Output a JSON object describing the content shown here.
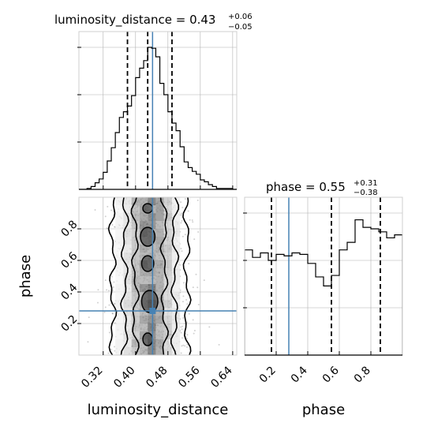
{
  "chart_data": [
    {
      "type": "histogram",
      "panel": "luminosity_distance-marginal",
      "title": {
        "param": "luminosity_distance",
        "value": "0.43",
        "upper": "+0.06",
        "lower": "−0.05"
      },
      "xlim": [
        0.26,
        0.65
      ],
      "truth": 0.442,
      "quantiles": [
        0.38,
        0.43,
        0.49
      ],
      "bins": [
        0.26,
        0.27,
        0.28,
        0.29,
        0.3,
        0.31,
        0.32,
        0.33,
        0.34,
        0.35,
        0.36,
        0.37,
        0.38,
        0.39,
        0.4,
        0.41,
        0.42,
        0.43,
        0.44,
        0.45,
        0.46,
        0.47,
        0.48,
        0.49,
        0.5,
        0.51,
        0.52,
        0.53,
        0.54,
        0.55,
        0.56,
        0.57,
        0.58,
        0.59,
        0.6,
        0.61,
        0.62,
        0.63,
        0.64,
        0.65
      ],
      "values": [
        0,
        0,
        1,
        3,
        7,
        11,
        18,
        30,
        44,
        60,
        76,
        82,
        88,
        99,
        118,
        128,
        136,
        150,
        149,
        140,
        112,
        100,
        82,
        70,
        62,
        45,
        29,
        23,
        19,
        16,
        10,
        8,
        5,
        3,
        1,
        1,
        1,
        1,
        0
      ]
    },
    {
      "type": "histogram",
      "panel": "phase-marginal",
      "title": {
        "param": "phase",
        "value": "0.55",
        "upper": "+0.31",
        "lower": "−0.38"
      },
      "xlim": [
        0,
        1
      ],
      "truth": 0.28,
      "quantiles": [
        0.17,
        0.55,
        0.86
      ],
      "bins": [
        0,
        0.05,
        0.1,
        0.15,
        0.2,
        0.25,
        0.3,
        0.35,
        0.4,
        0.45,
        0.5,
        0.55,
        0.6,
        0.65,
        0.7,
        0.75,
        0.8,
        0.85,
        0.9,
        0.95,
        1.0
      ],
      "values": [
        0.7,
        0.65,
        0.68,
        0.63,
        0.67,
        0.66,
        0.68,
        0.67,
        0.61,
        0.52,
        0.46,
        0.53,
        0.7,
        0.75,
        0.9,
        0.85,
        0.84,
        0.82,
        0.78,
        0.8
      ]
    },
    {
      "type": "scatter",
      "panel": "luminosity_distance-vs-phase",
      "xlabel": "luminosity_distance",
      "ylabel": "phase",
      "xlim": [
        0.26,
        0.65
      ],
      "ylim": [
        0,
        1
      ],
      "truth": {
        "x": 0.442,
        "y": 0.28
      }
    }
  ],
  "axes": {
    "x_ticks_ld": [
      "0.32",
      "0.40",
      "0.48",
      "0.56",
      "0.64"
    ],
    "x_ticks_phase": [
      "0.2",
      "0.4",
      "0.6",
      "0.8"
    ],
    "y_ticks_phase": [
      "0.2",
      "0.4",
      "0.6",
      "0.8"
    ],
    "xlabel_left": "luminosity_distance",
    "xlabel_right": "phase",
    "ylabel": "phase"
  },
  "colors": {
    "truth": "#4682b4",
    "hist": "#000000",
    "grid": "#b0b0b0"
  }
}
